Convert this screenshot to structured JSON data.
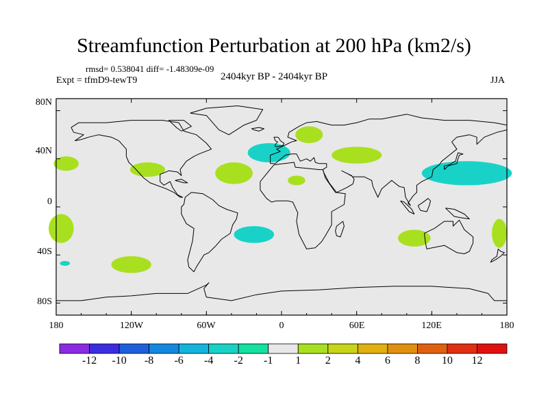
{
  "title": "Streamfunction Perturbation at 200 hPa (km2/s)",
  "stats": "rmsd= 0.538041 diff= -1.48309e-09",
  "experiment": "Expt = tfmD9-tewT9",
  "period": "2404kyr BP - 2404kyr BP",
  "season": "JJA",
  "lat_labels": [
    "80N",
    "40N",
    "0",
    "40S",
    "80S"
  ],
  "lon_labels": [
    "180",
    "120W",
    "60W",
    "0",
    "60E",
    "120E",
    "180"
  ],
  "colorbar": {
    "labels": [
      "-12",
      "-10",
      "-8",
      "-6",
      "-4",
      "-2",
      "-1",
      "1",
      "2",
      "4",
      "6",
      "8",
      "10",
      "12"
    ],
    "colors": [
      "#8a2be2",
      "#3a2ee0",
      "#1e60dc",
      "#1488e0",
      "#14b4dc",
      "#18d2c8",
      "#14e0a0",
      "#e8e8e8",
      "#a8e020",
      "#c8d418",
      "#e0b010",
      "#e09010",
      "#e06010",
      "#e03010",
      "#e01010"
    ]
  },
  "map": {
    "background": "#e8e8e8",
    "border": "#000000"
  },
  "anomalies": [
    {
      "name": "N Atlantic high",
      "lon": -10,
      "lat": 45,
      "rx_deg": 17,
      "ry_deg": 8,
      "color": "#18d2c8"
    },
    {
      "name": "Scandinavia",
      "lon": 22,
      "lat": 60,
      "rx_deg": 11,
      "ry_deg": 7,
      "color": "#a8e020"
    },
    {
      "name": "Mid Atlantic",
      "lon": -38,
      "lat": 28,
      "rx_deg": 15,
      "ry_deg": 9,
      "color": "#a8e020"
    },
    {
      "name": "N Africa",
      "lon": 12,
      "lat": 22,
      "rx_deg": 7,
      "ry_deg": 4,
      "color": "#a8e020"
    },
    {
      "name": "Central Asia",
      "lon": 60,
      "lat": 43,
      "rx_deg": 20,
      "ry_deg": 7,
      "color": "#a8e020"
    },
    {
      "name": "N Pacific",
      "lon": 148,
      "lat": 28,
      "rx_deg": 36,
      "ry_deg": 10,
      "color": "#18d2c8"
    },
    {
      "name": "E Pacific west",
      "lon": -172,
      "lat": 36,
      "rx_deg": 10,
      "ry_deg": 6,
      "color": "#a8e020"
    },
    {
      "name": "N America",
      "lon": -107,
      "lat": 31,
      "rx_deg": 14,
      "ry_deg": 6,
      "color": "#a8e020"
    },
    {
      "name": "S Atlantic",
      "lon": -22,
      "lat": -23,
      "rx_deg": 16,
      "ry_deg": 7,
      "color": "#18d2c8"
    },
    {
      "name": "S Indian",
      "lon": 106,
      "lat": -26,
      "rx_deg": 13,
      "ry_deg": 7,
      "color": "#a8e020"
    },
    {
      "name": "SE Pacific",
      "lon": -120,
      "lat": -48,
      "rx_deg": 16,
      "ry_deg": 7,
      "color": "#a8e020"
    },
    {
      "name": "SW Pacific west",
      "lon": -176,
      "lat": -18,
      "rx_deg": 10,
      "ry_deg": 12,
      "color": "#a8e020"
    },
    {
      "name": "SW Pacific east",
      "lon": 174,
      "lat": -22,
      "rx_deg": 6,
      "ry_deg": 12,
      "color": "#a8e020"
    },
    {
      "name": "S Pacific small",
      "lon": -173,
      "lat": -47,
      "rx_deg": 4,
      "ry_deg": 2,
      "color": "#18d2c8"
    }
  ],
  "coastlines": [
    {
      "name": "North America",
      "points": [
        [
          -168,
          66
        ],
        [
          -162,
          70
        ],
        [
          -140,
          70
        ],
        [
          -120,
          72
        ],
        [
          -95,
          72
        ],
        [
          -82,
          70
        ],
        [
          -78,
          63
        ],
        [
          -68,
          60
        ],
        [
          -60,
          53
        ],
        [
          -56,
          48
        ],
        [
          -66,
          44
        ],
        [
          -70,
          42
        ],
        [
          -76,
          38
        ],
        [
          -81,
          31
        ],
        [
          -80,
          26
        ],
        [
          -83,
          29
        ],
        [
          -90,
          30
        ],
        [
          -97,
          27
        ],
        [
          -97,
          21
        ],
        [
          -94,
          18
        ],
        [
          -89,
          21
        ],
        [
          -87,
          16
        ],
        [
          -83,
          10
        ],
        [
          -79,
          8
        ],
        [
          -81,
          8
        ],
        [
          -86,
          12
        ],
        [
          -92,
          15
        ],
        [
          -105,
          20
        ],
        [
          -110,
          24
        ],
        [
          -117,
          32
        ],
        [
          -122,
          37
        ],
        [
          -124,
          42
        ],
        [
          -124,
          48
        ],
        [
          -130,
          55
        ],
        [
          -136,
          58
        ],
        [
          -146,
          60
        ],
        [
          -154,
          58
        ],
        [
          -160,
          56
        ],
        [
          -165,
          55
        ],
        [
          -158,
          60
        ],
        [
          -166,
          62
        ],
        [
          -168,
          66
        ]
      ]
    },
    {
      "name": "South America",
      "points": [
        [
          -77,
          8
        ],
        [
          -72,
          12
        ],
        [
          -63,
          11
        ],
        [
          -55,
          6
        ],
        [
          -50,
          1
        ],
        [
          -44,
          -2
        ],
        [
          -35,
          -5
        ],
        [
          -36,
          -10
        ],
        [
          -39,
          -15
        ],
        [
          -41,
          -22
        ],
        [
          -48,
          -27
        ],
        [
          -53,
          -33
        ],
        [
          -58,
          -38
        ],
        [
          -62,
          -40
        ],
        [
          -65,
          -45
        ],
        [
          -68,
          -50
        ],
        [
          -70,
          -54
        ],
        [
          -74,
          -50
        ],
        [
          -75,
          -44
        ],
        [
          -73,
          -36
        ],
        [
          -71,
          -28
        ],
        [
          -70,
          -18
        ],
        [
          -76,
          -14
        ],
        [
          -80,
          -6
        ],
        [
          -80,
          0
        ],
        [
          -78,
          2
        ],
        [
          -77,
          8
        ]
      ]
    },
    {
      "name": "Eurasia",
      "points": [
        [
          -9,
          36
        ],
        [
          -9,
          43
        ],
        [
          -1,
          46
        ],
        [
          -4,
          48
        ],
        [
          2,
          51
        ],
        [
          8,
          54
        ],
        [
          12,
          55
        ],
        [
          5,
          58
        ],
        [
          6,
          62
        ],
        [
          14,
          67
        ],
        [
          20,
          70
        ],
        [
          28,
          71
        ],
        [
          40,
          68
        ],
        [
          50,
          68
        ],
        [
          60,
          70
        ],
        [
          70,
          73
        ],
        [
          80,
          73
        ],
        [
          100,
          77
        ],
        [
          112,
          74
        ],
        [
          130,
          72
        ],
        [
          150,
          72
        ],
        [
          170,
          70
        ],
        [
          180,
          68
        ],
        [
          180,
          64
        ],
        [
          172,
          62
        ],
        [
          162,
          58
        ],
        [
          156,
          52
        ],
        [
          156,
          58
        ],
        [
          150,
          60
        ],
        [
          140,
          58
        ],
        [
          136,
          54
        ],
        [
          140,
          48
        ],
        [
          134,
          43
        ],
        [
          128,
          38
        ],
        [
          126,
          35
        ],
        [
          121,
          31
        ],
        [
          120,
          25
        ],
        [
          112,
          21
        ],
        [
          108,
          18
        ],
        [
          108,
          12
        ],
        [
          105,
          9
        ],
        [
          101,
          3
        ],
        [
          103,
          1
        ],
        [
          99,
          8
        ],
        [
          98,
          16
        ],
        [
          94,
          17
        ],
        [
          88,
          22
        ],
        [
          80,
          15
        ],
        [
          77,
          8
        ],
        [
          73,
          17
        ],
        [
          72,
          22
        ],
        [
          66,
          25
        ],
        [
          57,
          25
        ],
        [
          52,
          28
        ],
        [
          48,
          30
        ],
        [
          56,
          26
        ],
        [
          58,
          23
        ],
        [
          57,
          19
        ],
        [
          52,
          16
        ],
        [
          44,
          12
        ],
        [
          38,
          20
        ],
        [
          34,
          28
        ],
        [
          33,
          31
        ],
        [
          36,
          33
        ],
        [
          36,
          36
        ],
        [
          30,
          36
        ],
        [
          27,
          37
        ],
        [
          26,
          41
        ],
        [
          23,
          38
        ],
        [
          20,
          40
        ],
        [
          15,
          38
        ],
        [
          12,
          44
        ],
        [
          8,
          44
        ],
        [
          3,
          43
        ],
        [
          -5,
          36
        ],
        [
          -9,
          36
        ]
      ]
    },
    {
      "name": "Africa",
      "points": [
        [
          -17,
          21
        ],
        [
          -10,
          30
        ],
        [
          -6,
          35
        ],
        [
          10,
          37
        ],
        [
          11,
          33
        ],
        [
          20,
          32
        ],
        [
          30,
          31
        ],
        [
          33,
          31
        ],
        [
          35,
          24
        ],
        [
          43,
          12
        ],
        [
          51,
          11
        ],
        [
          50,
          2
        ],
        [
          40,
          -4
        ],
        [
          40,
          -15
        ],
        [
          35,
          -24
        ],
        [
          32,
          -29
        ],
        [
          27,
          -34
        ],
        [
          20,
          -35
        ],
        [
          18,
          -31
        ],
        [
          14,
          -23
        ],
        [
          12,
          -12
        ],
        [
          13,
          -5
        ],
        [
          9,
          4
        ],
        [
          5,
          5
        ],
        [
          -4,
          5
        ],
        [
          -8,
          4
        ],
        [
          -12,
          7
        ],
        [
          -17,
          14
        ],
        [
          -17,
          21
        ]
      ]
    },
    {
      "name": "Australia",
      "points": [
        [
          114,
          -22
        ],
        [
          122,
          -18
        ],
        [
          130,
          -12
        ],
        [
          137,
          -12
        ],
        [
          137,
          -16
        ],
        [
          142,
          -11
        ],
        [
          146,
          -19
        ],
        [
          153,
          -25
        ],
        [
          153,
          -30
        ],
        [
          150,
          -37
        ],
        [
          146,
          -39
        ],
        [
          140,
          -38
        ],
        [
          135,
          -35
        ],
        [
          130,
          -32
        ],
        [
          116,
          -35
        ],
        [
          115,
          -30
        ],
        [
          114,
          -22
        ]
      ]
    },
    {
      "name": "Greenland",
      "points": [
        [
          -73,
          78
        ],
        [
          -60,
          82
        ],
        [
          -35,
          84
        ],
        [
          -15,
          81
        ],
        [
          -20,
          72
        ],
        [
          -30,
          68
        ],
        [
          -42,
          60
        ],
        [
          -50,
          64
        ],
        [
          -55,
          70
        ],
        [
          -60,
          76
        ],
        [
          -73,
          78
        ]
      ]
    },
    {
      "name": "Antarctica",
      "points": [
        [
          -180,
          -78
        ],
        [
          -160,
          -78
        ],
        [
          -140,
          -75
        ],
        [
          -120,
          -74
        ],
        [
          -100,
          -72
        ],
        [
          -75,
          -72
        ],
        [
          -60,
          -65
        ],
        [
          -58,
          -63
        ],
        [
          -62,
          -68
        ],
        [
          -60,
          -75
        ],
        [
          -40,
          -78
        ],
        [
          -20,
          -73
        ],
        [
          0,
          -70
        ],
        [
          30,
          -69
        ],
        [
          60,
          -67
        ],
        [
          90,
          -66
        ],
        [
          120,
          -66
        ],
        [
          150,
          -68
        ],
        [
          165,
          -72
        ],
        [
          170,
          -78
        ],
        [
          180,
          -78
        ]
      ]
    },
    {
      "name": "Great Britain",
      "points": [
        [
          -5,
          50
        ],
        [
          1,
          51
        ],
        [
          2,
          53
        ],
        [
          -1,
          55
        ],
        [
          -2,
          57
        ],
        [
          -3,
          58
        ],
        [
          -6,
          58
        ],
        [
          -5,
          55
        ],
        [
          -3,
          54
        ],
        [
          -5,
          52
        ],
        [
          -5,
          50
        ]
      ]
    },
    {
      "name": "Madagascar",
      "points": [
        [
          44,
          -16
        ],
        [
          49,
          -12
        ],
        [
          50,
          -16
        ],
        [
          47,
          -25
        ],
        [
          44,
          -24
        ],
        [
          43,
          -20
        ],
        [
          44,
          -16
        ]
      ]
    },
    {
      "name": "Japan",
      "points": [
        [
          130,
          31
        ],
        [
          133,
          34
        ],
        [
          136,
          35
        ],
        [
          140,
          36
        ],
        [
          141,
          40
        ],
        [
          142,
          43
        ],
        [
          145,
          44
        ],
        [
          141,
          45
        ],
        [
          140,
          42
        ],
        [
          139,
          38
        ],
        [
          137,
          37
        ],
        [
          134,
          35
        ],
        [
          130,
          34
        ],
        [
          130,
          31
        ]
      ]
    },
    {
      "name": "New Zealand",
      "points": [
        [
          173,
          -35
        ],
        [
          175,
          -37
        ],
        [
          178,
          -38
        ],
        [
          175,
          -41
        ],
        [
          171,
          -44
        ],
        [
          167,
          -46
        ],
        [
          168,
          -44
        ],
        [
          172,
          -41
        ],
        [
          173,
          -35
        ]
      ]
    },
    {
      "name": "Borneo",
      "points": [
        [
          109,
          1
        ],
        [
          112,
          3
        ],
        [
          117,
          7
        ],
        [
          119,
          5
        ],
        [
          118,
          1
        ],
        [
          116,
          -4
        ],
        [
          111,
          -3
        ],
        [
          109,
          1
        ]
      ]
    },
    {
      "name": "Sumatra",
      "points": [
        [
          95,
          5
        ],
        [
          98,
          4
        ],
        [
          104,
          -2
        ],
        [
          106,
          -6
        ],
        [
          102,
          -4
        ],
        [
          95,
          5
        ]
      ]
    },
    {
      "name": "New Guinea",
      "points": [
        [
          131,
          -1
        ],
        [
          138,
          -2
        ],
        [
          146,
          -6
        ],
        [
          150,
          -10
        ],
        [
          143,
          -9
        ],
        [
          138,
          -8
        ],
        [
          131,
          -1
        ]
      ]
    },
    {
      "name": "Iceland",
      "points": [
        [
          -24,
          65
        ],
        [
          -18,
          66
        ],
        [
          -14,
          65
        ],
        [
          -18,
          63
        ],
        [
          -22,
          64
        ],
        [
          -24,
          65
        ]
      ]
    },
    {
      "name": "Baffin Island",
      "points": [
        [
          -80,
          63
        ],
        [
          -72,
          67
        ],
        [
          -78,
          72
        ],
        [
          -90,
          72
        ],
        [
          -84,
          66
        ],
        [
          -80,
          63
        ]
      ]
    },
    {
      "name": "Cuba",
      "points": [
        [
          -85,
          22
        ],
        [
          -80,
          23
        ],
        [
          -75,
          20
        ],
        [
          -78,
          20
        ],
        [
          -85,
          22
        ]
      ]
    }
  ]
}
